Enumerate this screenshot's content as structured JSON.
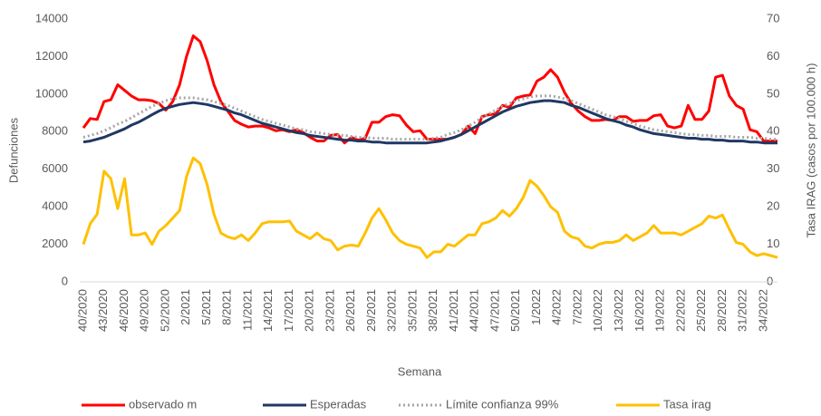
{
  "chart_data": {
    "type": "line",
    "x_label": "Semana",
    "y_label": "Defunciones",
    "y2_label": "Tasa IRAG (casos por 100.000 h)",
    "categories": [
      "40/2020",
      null,
      null,
      "43/2020",
      null,
      null,
      "46/2020",
      null,
      null,
      "49/2020",
      null,
      null,
      "52/2020",
      null,
      null,
      "2/2021",
      null,
      null,
      "5/2021",
      null,
      null,
      "8/2021",
      null,
      null,
      "11/2021",
      null,
      null,
      "14/2021",
      null,
      null,
      "17/2021",
      null,
      null,
      "20/2021",
      null,
      null,
      "23/2021",
      null,
      null,
      "26/2021",
      null,
      null,
      "29/2021",
      null,
      null,
      "32/2021",
      null,
      null,
      "35/2021",
      null,
      null,
      "38/2021",
      null,
      null,
      "41/2021",
      null,
      null,
      "44/2021",
      null,
      null,
      "47/2021",
      null,
      null,
      "50/2021",
      null,
      null,
      "1/2022",
      null,
      null,
      "4/2022",
      null,
      null,
      "7/2022",
      null,
      null,
      "10/2022",
      null,
      null,
      "13/2022",
      null,
      null,
      "16/2022",
      null,
      null,
      "19/2022",
      null,
      null,
      "22/2022",
      null,
      null,
      "25/2022",
      null,
      null,
      "28/2022",
      null,
      null,
      "31/2022",
      null,
      null,
      "34/2022",
      null,
      null
    ],
    "ylim": [
      0,
      14000
    ],
    "yticks": [
      0,
      2000,
      4000,
      6000,
      8000,
      10000,
      12000,
      14000
    ],
    "y2lim": [
      0,
      70
    ],
    "y2ticks": [
      0,
      10,
      20,
      30,
      40,
      50,
      60,
      70
    ],
    "legend": "bottom",
    "series": [
      {
        "name": "observado  m",
        "color": "#ff0000",
        "style": "solid",
        "values": [
          8200,
          8700,
          8650,
          9600,
          9700,
          10500,
          10200,
          9900,
          9700,
          9700,
          9650,
          9500,
          9150,
          9600,
          10500,
          12000,
          13100,
          12800,
          11800,
          10500,
          9600,
          9100,
          8600,
          8400,
          8250,
          8300,
          8300,
          8200,
          8050,
          8100,
          8000,
          8100,
          7950,
          7700,
          7500,
          7500,
          7800,
          7850,
          7400,
          7700,
          7550,
          7650,
          8500,
          8500,
          8800,
          8900,
          8850,
          8350,
          8000,
          8050,
          7600,
          7600,
          7600,
          7600,
          7700,
          7850,
          8300,
          7900,
          8800,
          8900,
          8950,
          9400,
          9300,
          9800,
          9900,
          9950,
          10700,
          10900,
          11300,
          10900,
          10100,
          9500,
          9100,
          8800,
          8600,
          8600,
          8650,
          8600,
          8800,
          8800,
          8550,
          8600,
          8600,
          8850,
          8900,
          8300,
          8200,
          8300,
          9400,
          8650,
          8650,
          9100,
          10900,
          11000,
          9900,
          9400,
          9200,
          8100,
          8000,
          7500,
          7500,
          7500
        ]
      },
      {
        "name": "Esperadas",
        "color": "#1f3864",
        "style": "solid",
        "values": [
          7450,
          7500,
          7600,
          7700,
          7850,
          8000,
          8150,
          8350,
          8500,
          8700,
          8900,
          9100,
          9250,
          9350,
          9450,
          9500,
          9550,
          9500,
          9450,
          9350,
          9250,
          9150,
          9000,
          8900,
          8750,
          8600,
          8450,
          8350,
          8250,
          8150,
          8050,
          7950,
          7900,
          7800,
          7750,
          7700,
          7650,
          7600,
          7550,
          7550,
          7500,
          7500,
          7450,
          7450,
          7400,
          7400,
          7400,
          7400,
          7400,
          7400,
          7400,
          7450,
          7500,
          7600,
          7700,
          7850,
          8050,
          8250,
          8450,
          8650,
          8850,
          9050,
          9200,
          9350,
          9450,
          9550,
          9600,
          9650,
          9650,
          9600,
          9550,
          9400,
          9300,
          9150,
          9000,
          8850,
          8700,
          8600,
          8500,
          8350,
          8250,
          8100,
          8000,
          7900,
          7850,
          7800,
          7750,
          7700,
          7650,
          7650,
          7600,
          7600,
          7550,
          7550,
          7500,
          7500,
          7500,
          7450,
          7450,
          7400,
          7400,
          7400
        ]
      },
      {
        "name": "Límite confianza 99%",
        "color": "#a6a6a6",
        "style": "dotted",
        "values": [
          7700,
          7800,
          7900,
          8050,
          8200,
          8400,
          8550,
          8750,
          8950,
          9150,
          9350,
          9500,
          9650,
          9750,
          9800,
          9800,
          9800,
          9750,
          9700,
          9600,
          9500,
          9400,
          9250,
          9100,
          8950,
          8800,
          8650,
          8550,
          8450,
          8350,
          8250,
          8150,
          8100,
          8000,
          7950,
          7900,
          7850,
          7800,
          7800,
          7750,
          7700,
          7700,
          7650,
          7650,
          7650,
          7600,
          7600,
          7600,
          7600,
          7600,
          7600,
          7650,
          7700,
          7850,
          7950,
          8100,
          8300,
          8500,
          8750,
          8950,
          9150,
          9350,
          9500,
          9650,
          9750,
          9850,
          9900,
          9900,
          9900,
          9850,
          9750,
          9650,
          9500,
          9350,
          9200,
          9050,
          8900,
          8800,
          8700,
          8550,
          8450,
          8300,
          8200,
          8100,
          8050,
          8000,
          7950,
          7900,
          7850,
          7850,
          7800,
          7800,
          7750,
          7750,
          7750,
          7700,
          7700,
          7700,
          7650,
          7650,
          7600,
          7600
        ]
      },
      {
        "name": "Tasa  irag",
        "color": "#ffc000",
        "style": "solid",
        "axis": "y2",
        "values": [
          10,
          15.5,
          18,
          29.5,
          27.5,
          19.5,
          27.5,
          12.5,
          12.5,
          13,
          10,
          13.5,
          15,
          17,
          19,
          28,
          33,
          31.5,
          26,
          18,
          13,
          12,
          11.5,
          12.5,
          11,
          13,
          15.5,
          16,
          16,
          16,
          16.2,
          13.5,
          12.5,
          11.5,
          13,
          11.5,
          11,
          8.5,
          9.5,
          9.8,
          9.5,
          13,
          17,
          19.5,
          16.5,
          13,
          11,
          10,
          9.5,
          9,
          6.5,
          8,
          8,
          10,
          9.5,
          11,
          12.5,
          12.5,
          15.5,
          16,
          17,
          19,
          17.5,
          19.5,
          22.5,
          27,
          25.5,
          23,
          20,
          18.5,
          13.5,
          12,
          11.5,
          9.5,
          9,
          10,
          10.5,
          10.5,
          11,
          12.5,
          11,
          12,
          13,
          15,
          13,
          13,
          13,
          12.5,
          13.5,
          14.5,
          15.5,
          17.5,
          17,
          17.8,
          14,
          10.5,
          10,
          8,
          7,
          7.5,
          7,
          6.5
        ]
      }
    ]
  }
}
